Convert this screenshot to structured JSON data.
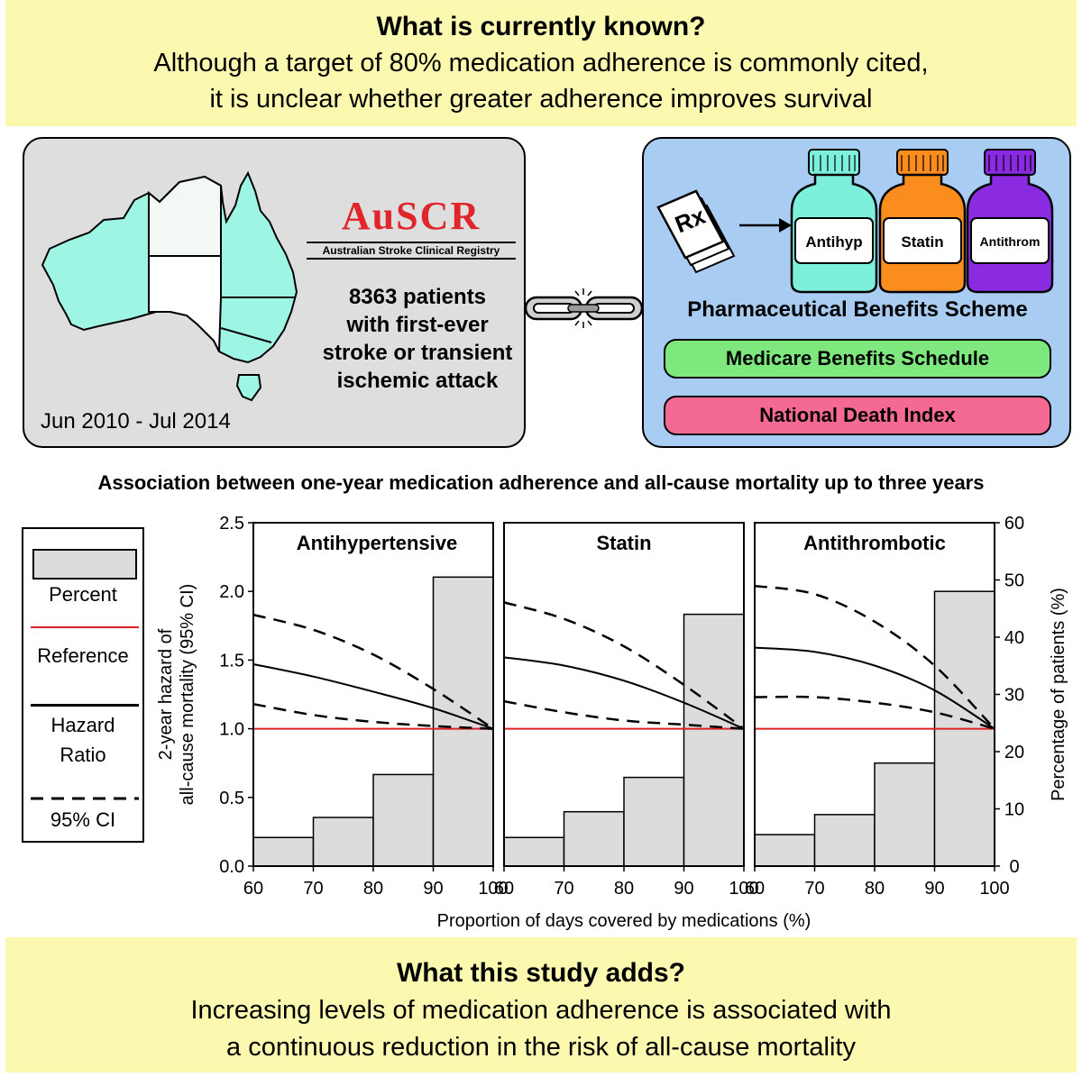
{
  "top_banner": {
    "heading": "What is currently known?",
    "line1": "Although a target of 80% medication adherence is commonly cited,",
    "line2": "it is unclear whether greater adherence improves survival"
  },
  "registry": {
    "logo": "AuSCR",
    "name": "Australian Stroke Clinical Registry",
    "patients_line1": "8363 patients",
    "patients_line2": "with first-ever",
    "patients_line3": "stroke or transient",
    "patients_line4": "ischemic attack",
    "date_range": "Jun 2010 - Jul 2014"
  },
  "linkage": {
    "rx": "Rx",
    "bottles": [
      {
        "label": "Antihyp",
        "color": "#7df0dc"
      },
      {
        "label": "Statin",
        "color": "#fb8c1e"
      },
      {
        "label": "Antithrom",
        "color": "#8a2be2"
      }
    ],
    "pbs": "Pharmaceutical Benefits Scheme",
    "mbs": "Medicare Benefits Schedule",
    "ndi": "National Death Index"
  },
  "colors": {
    "banner": "#fbf8b0",
    "map_shaded": "#9ff5e3",
    "reference_line": "#dd2222",
    "bar_fill": "#dcdcdc"
  },
  "association_title": "Association between one-year medication adherence and all-cause mortality up to three years",
  "legend": {
    "percent": "Percent",
    "reference": "Reference",
    "hazard1": "Hazard",
    "hazard2": "Ratio",
    "ci": "95% CI"
  },
  "chart_data": {
    "type": "bar",
    "x_title": "Proportion of days covered by medications (%)",
    "y_left_title_line1": "2-year hazard of",
    "y_left_title_line2": "all-cause mortality (95% CI)",
    "y_right_title": "Percentage of patients (%)",
    "y_left_range": [
      0,
      2.5
    ],
    "y_left_ticks": [
      "0.0",
      "0.5",
      "1.0",
      "1.5",
      "2.0",
      "2.5"
    ],
    "y_right_range": [
      0,
      60
    ],
    "y_right_ticks": [
      "0",
      "10",
      "20",
      "30",
      "40",
      "50",
      "60"
    ],
    "x_range": [
      60,
      100
    ],
    "x_ticks": [
      "60",
      "70",
      "80",
      "90",
      "100"
    ],
    "bin_edges": [
      60,
      70,
      80,
      90,
      100
    ],
    "reference_value": 1.0,
    "panels": [
      {
        "title": "Antihypertensive",
        "percent": [
          5,
          8.5,
          16,
          50.5
        ],
        "hr_x": [
          60,
          70,
          80,
          90,
          100
        ],
        "hr": [
          1.47,
          1.38,
          1.27,
          1.15,
          1.0
        ],
        "ci_upper": [
          1.83,
          1.72,
          1.54,
          1.29,
          1.0
        ],
        "ci_lower": [
          1.18,
          1.1,
          1.05,
          1.02,
          1.0
        ]
      },
      {
        "title": "Statin",
        "percent": [
          5,
          9.5,
          15.5,
          44
        ],
        "hr_x": [
          60,
          70,
          80,
          90,
          100
        ],
        "hr": [
          1.52,
          1.46,
          1.35,
          1.19,
          1.0
        ],
        "ci_upper": [
          1.92,
          1.8,
          1.6,
          1.32,
          1.0
        ],
        "ci_lower": [
          1.2,
          1.12,
          1.06,
          1.03,
          1.0
        ]
      },
      {
        "title": "Antithrombotic",
        "percent": [
          5.5,
          9,
          18,
          48
        ],
        "hr_x": [
          60,
          70,
          80,
          90,
          100
        ],
        "hr": [
          1.59,
          1.56,
          1.46,
          1.28,
          1.0
        ],
        "ci_upper": [
          2.04,
          1.98,
          1.78,
          1.46,
          1.0
        ],
        "ci_lower": [
          1.23,
          1.23,
          1.19,
          1.12,
          1.0
        ]
      }
    ]
  }
}
